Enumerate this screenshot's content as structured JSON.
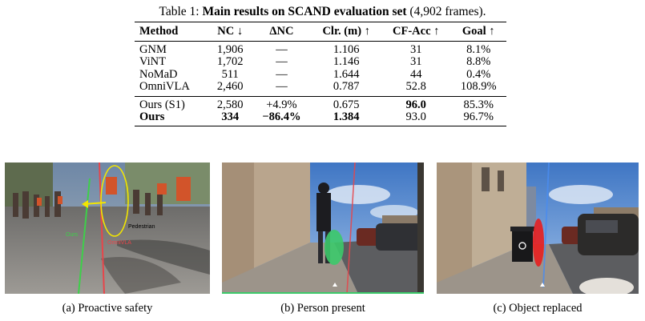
{
  "caption": {
    "prefix": "Table 1: ",
    "title": "Main results on SCAND evaluation set",
    "suffix": " (4,902 frames)."
  },
  "table": {
    "headers": [
      "Method",
      "NC ↓",
      "ΔNC",
      "Clr. (m) ↑",
      "CF-Acc ↑",
      "Goal ↑"
    ],
    "rows_baselines": [
      [
        "GNM",
        "1,906",
        "—",
        "1.106",
        "31",
        "8.1%"
      ],
      [
        "ViNT",
        "1,702",
        "—",
        "1.146",
        "31",
        "8.8%"
      ],
      [
        "NoMaD",
        "511",
        "—",
        "1.644",
        "44",
        "0.4%"
      ],
      [
        "OmniVLA",
        "2,460",
        "—",
        "0.787",
        "52.8",
        "108.9%"
      ]
    ],
    "rows_ours": [
      [
        "Ours (S1)",
        "2,580",
        "+4.9%",
        "0.675",
        "96.0",
        "85.3%"
      ],
      [
        "Ours",
        "334",
        "−86.4%",
        "1.384",
        "93.0",
        "96.7%"
      ]
    ]
  },
  "figures": [
    {
      "caption": "(a) Proactive safety",
      "labels": {
        "pedestrian": "Pedestrian",
        "ours": "Ours",
        "omnivla": "OmniVLA"
      },
      "colors": {
        "ours": "#3ecf4a",
        "omnivla": "#e8454a",
        "ellipse": "#f3e600",
        "arrow": "#f3e600"
      }
    },
    {
      "caption": "(b) Person present",
      "colors": {
        "marker": "#3cc96a",
        "path": "#e8454a"
      }
    },
    {
      "caption": "(c) Object replaced",
      "colors": {
        "marker": "#e81e1e",
        "path": "#4a8cf0"
      }
    }
  ]
}
